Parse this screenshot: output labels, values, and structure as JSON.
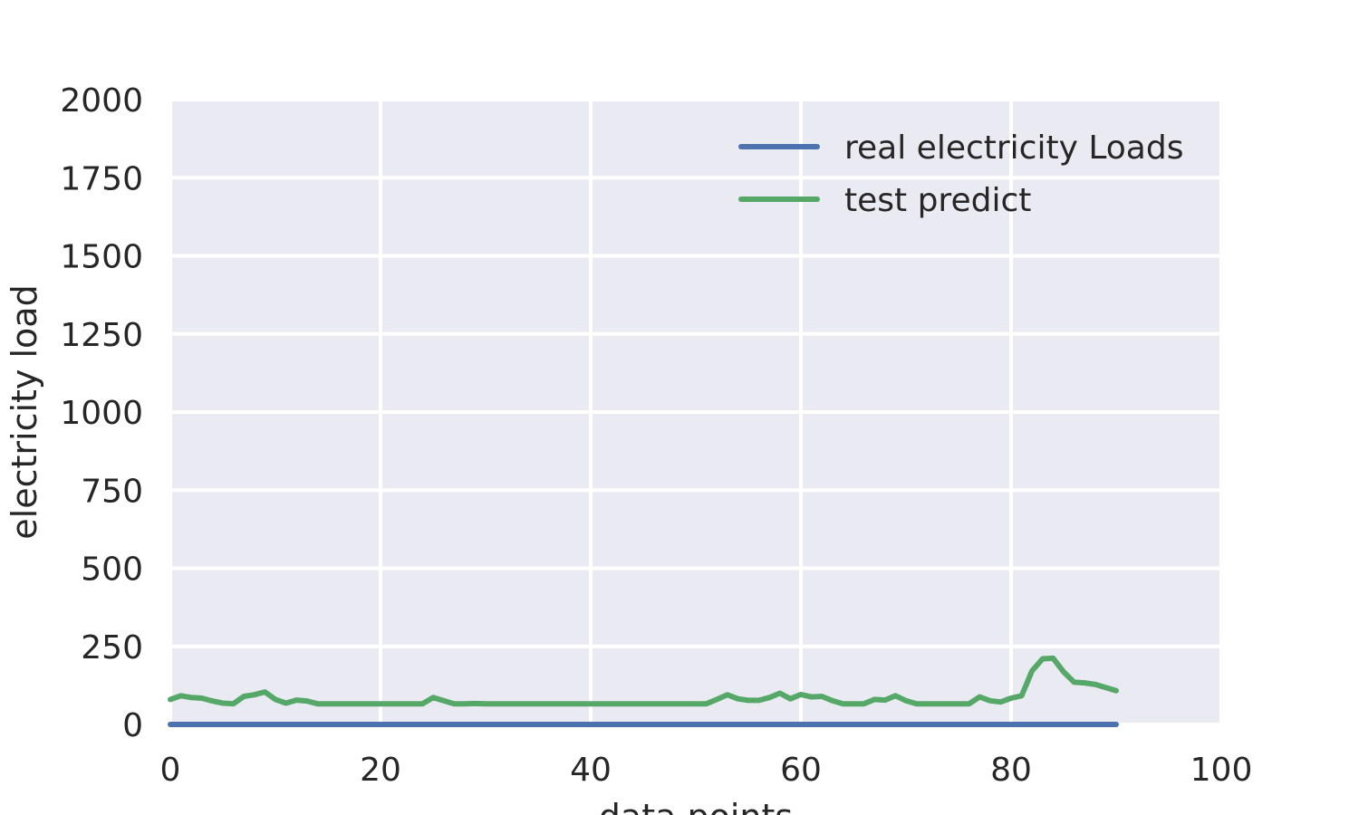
{
  "chart_data": {
    "type": "line",
    "title": "",
    "xlabel": "data points",
    "ylabel": "electricity load",
    "xlim": [
      0,
      100
    ],
    "ylim": [
      0,
      2000
    ],
    "x_ticks": [
      0,
      20,
      40,
      60,
      80,
      100
    ],
    "y_ticks": [
      0,
      250,
      500,
      750,
      1000,
      1250,
      1500,
      1750,
      2000
    ],
    "x_tick_labels": [
      "0",
      "20",
      "40",
      "60",
      "80",
      "100"
    ],
    "y_tick_labels": [
      "0",
      "250",
      "500",
      "750",
      "1000",
      "1250",
      "1500",
      "1750",
      "2000"
    ],
    "grid": true,
    "background": "#eaeaf2",
    "legend": {
      "position": "upper-right",
      "entries": [
        "real electricity Loads",
        "test predict"
      ]
    },
    "series": [
      {
        "name": "real electricity Loads",
        "color": "#4c72b0",
        "x": [
          0,
          10,
          20,
          30,
          40,
          50,
          60,
          70,
          80,
          90
        ],
        "y": [
          0,
          0,
          0,
          0,
          0,
          0,
          0,
          0,
          0,
          0
        ]
      },
      {
        "name": "test predict",
        "color": "#55a868",
        "x": [
          0,
          1,
          2,
          3,
          4,
          5,
          6,
          7,
          8,
          9,
          10,
          11,
          12,
          13,
          14,
          15,
          16,
          17,
          18,
          19,
          20,
          21,
          22,
          23,
          24,
          25,
          26,
          27,
          28,
          29,
          30,
          31,
          32,
          33,
          34,
          35,
          36,
          37,
          38,
          39,
          40,
          41,
          42,
          43,
          44,
          45,
          46,
          47,
          48,
          49,
          50,
          51,
          52,
          53,
          54,
          55,
          56,
          57,
          58,
          59,
          60,
          61,
          62,
          63,
          64,
          65,
          66,
          67,
          68,
          69,
          70,
          71,
          72,
          73,
          74,
          75,
          76,
          77,
          78,
          79,
          80,
          81,
          82,
          83,
          84,
          85,
          86,
          87,
          88,
          89,
          90
        ],
        "y": [
          80,
          92,
          86,
          84,
          75,
          68,
          66,
          90,
          95,
          104,
          80,
          68,
          78,
          75,
          66,
          66,
          66,
          66,
          66,
          66,
          66,
          66,
          66,
          66,
          66,
          86,
          76,
          66,
          66,
          67,
          66,
          66,
          66,
          66,
          66,
          66,
          66,
          66,
          66,
          66,
          66,
          66,
          66,
          66,
          66,
          66,
          66,
          66,
          66,
          66,
          66,
          66,
          80,
          95,
          82,
          77,
          77,
          86,
          100,
          82,
          96,
          88,
          90,
          76,
          66,
          66,
          66,
          80,
          78,
          92,
          76,
          66,
          66,
          66,
          66,
          66,
          66,
          88,
          76,
          72,
          84,
          92,
          172,
          210,
          212,
          168,
          135,
          133,
          128,
          118,
          108
        ]
      }
    ]
  }
}
